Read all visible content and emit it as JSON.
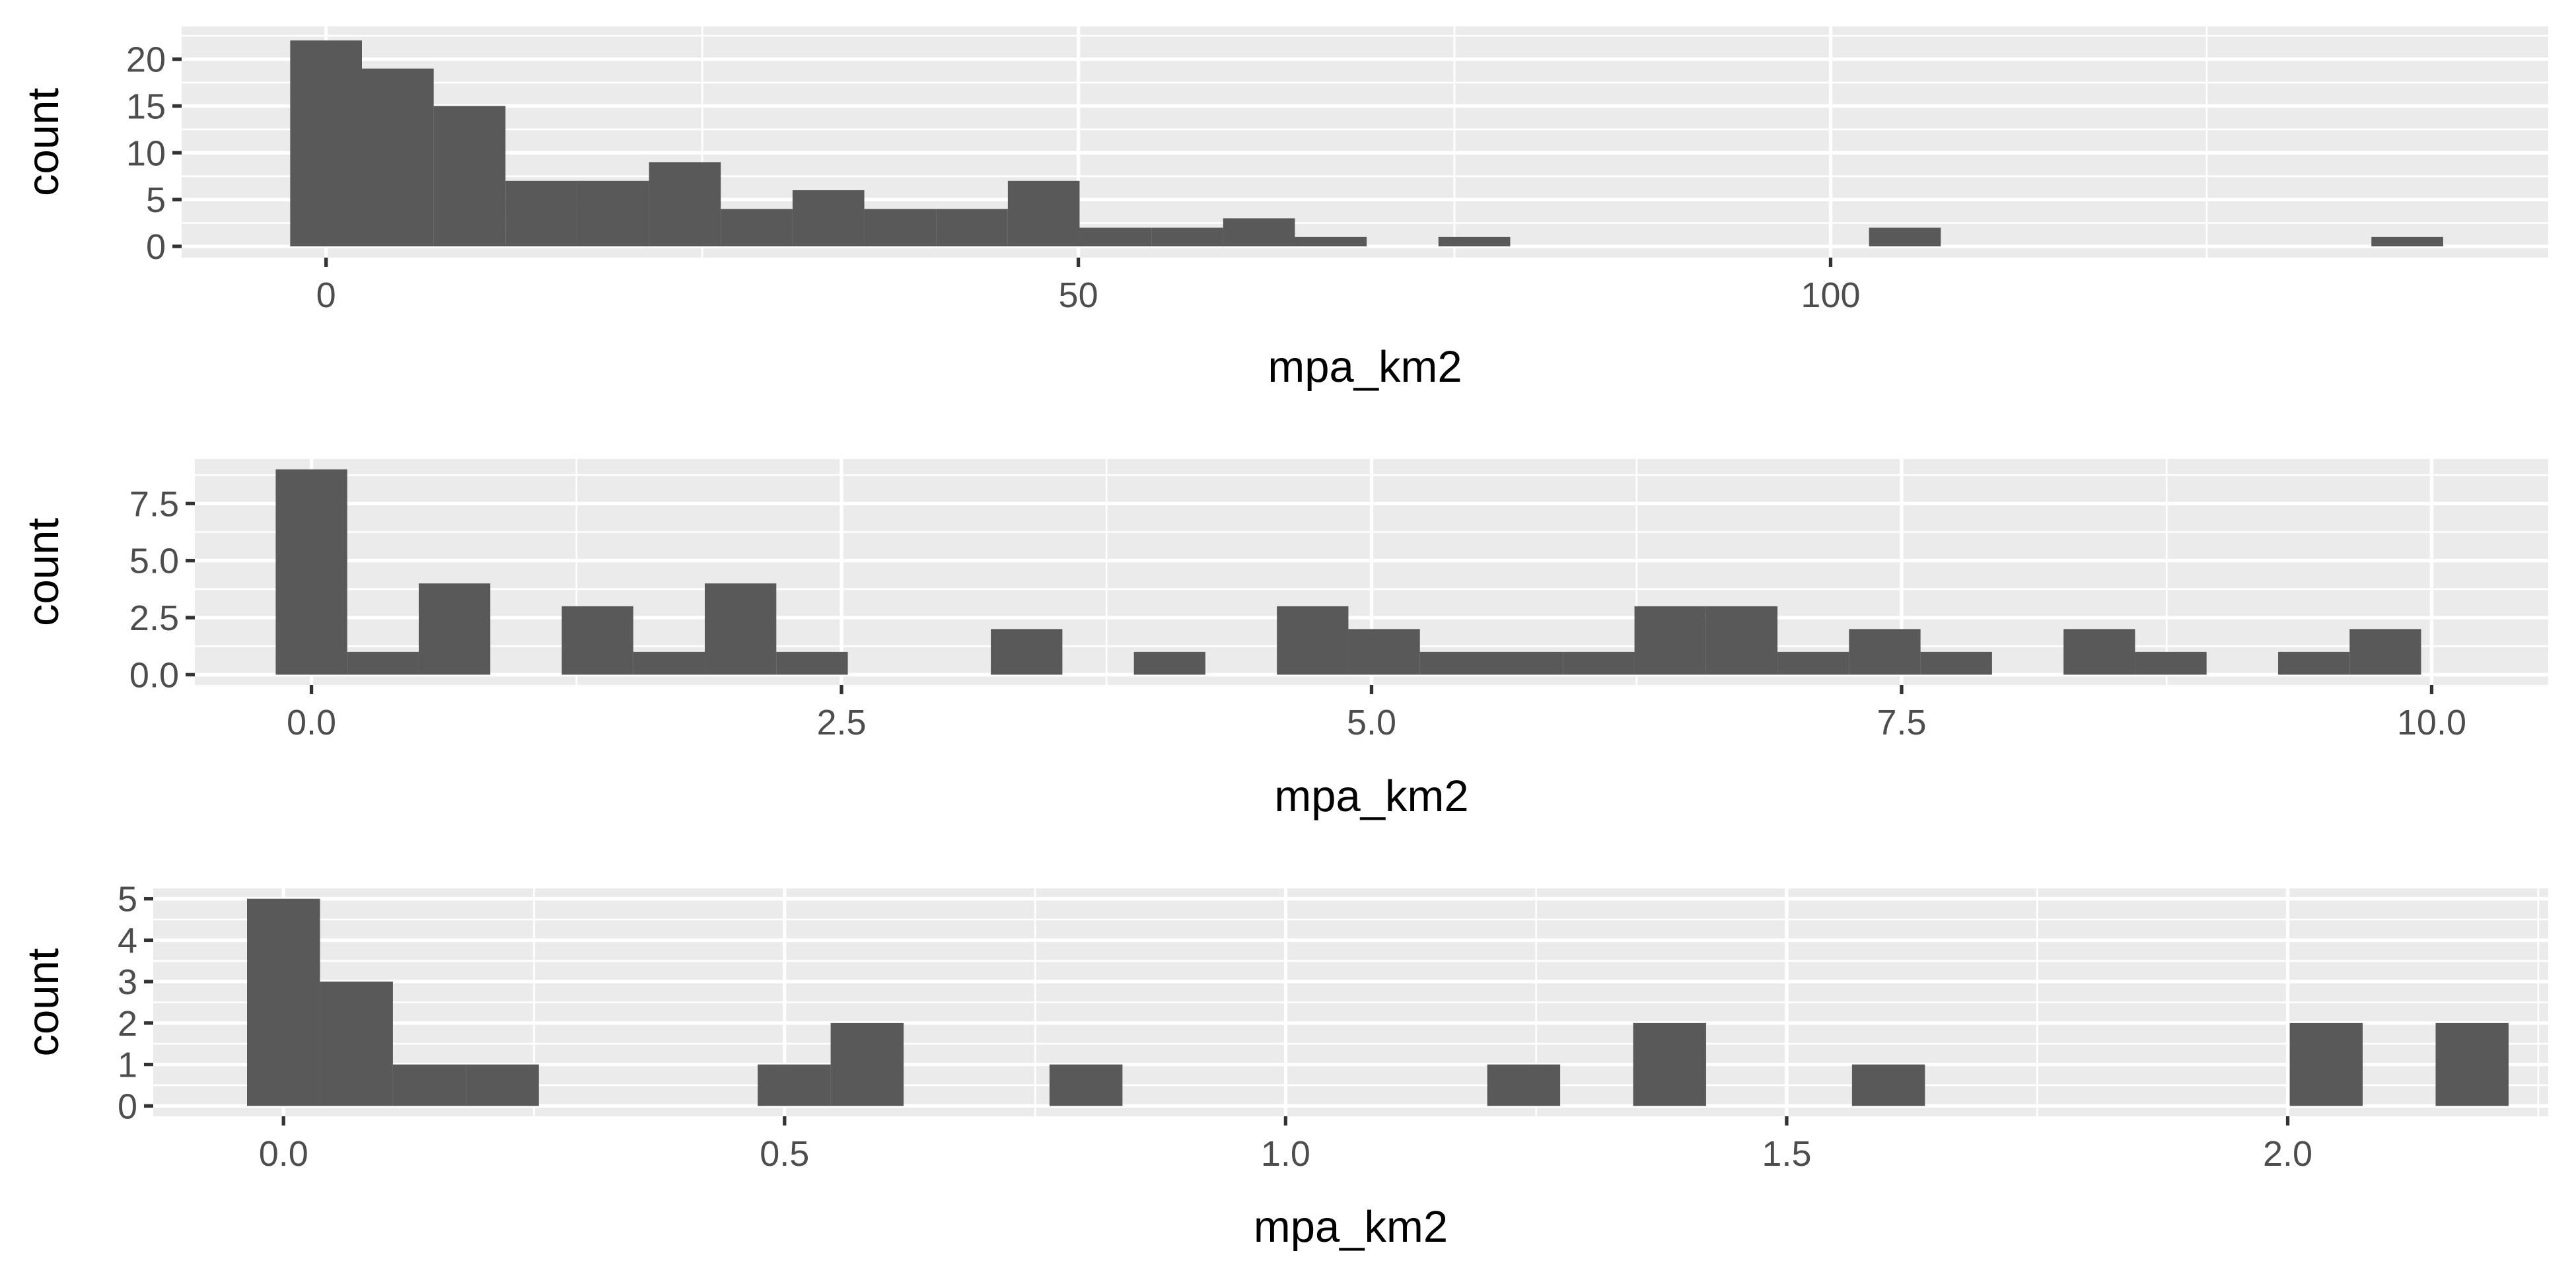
{
  "colors": {
    "panel_background": "#EBEBEB",
    "grid": "#FFFFFF",
    "bar_fill": "#595959",
    "tick_text": "#4D4D4D",
    "title_text": "#000000"
  },
  "chart_data": [
    {
      "type": "bar",
      "kind": "histogram",
      "xlabel": "mpa_km2",
      "ylabel": "count",
      "xlim": [
        -9.6,
        147.7
      ],
      "ylim": [
        -1.2,
        23.5
      ],
      "x_ticks": [
        0,
        50,
        100
      ],
      "x_tick_labels": [
        "0",
        "50",
        "100"
      ],
      "x_minor_ticks": [
        25,
        75,
        125
      ],
      "y_ticks": [
        0,
        5,
        10,
        15,
        20
      ],
      "y_tick_labels": [
        "0",
        "5",
        "10",
        "15",
        "20"
      ],
      "y_minor_ticks": [
        2.5,
        7.5,
        12.5,
        17.5,
        22.5
      ],
      "bin_width": 4.77,
      "bins": [
        {
          "x": 0,
          "count": 22
        },
        {
          "x": 4.77,
          "count": 19
        },
        {
          "x": 9.54,
          "count": 15
        },
        {
          "x": 14.31,
          "count": 7
        },
        {
          "x": 19.08,
          "count": 7
        },
        {
          "x": 23.85,
          "count": 9
        },
        {
          "x": 28.62,
          "count": 4
        },
        {
          "x": 33.39,
          "count": 6
        },
        {
          "x": 38.16,
          "count": 4
        },
        {
          "x": 42.93,
          "count": 4
        },
        {
          "x": 47.7,
          "count": 7
        },
        {
          "x": 52.47,
          "count": 2
        },
        {
          "x": 57.24,
          "count": 2
        },
        {
          "x": 62.01,
          "count": 3
        },
        {
          "x": 66.78,
          "count": 1
        },
        {
          "x": 76.32,
          "count": 1
        },
        {
          "x": 104.94,
          "count": 2
        },
        {
          "x": 138.33,
          "count": 1
        }
      ]
    },
    {
      "type": "bar",
      "kind": "histogram",
      "xlabel": "mpa_km2",
      "ylabel": "count",
      "xlim": [
        -0.55,
        10.55
      ],
      "ylim": [
        -0.45,
        9.45
      ],
      "x_ticks": [
        0,
        2.5,
        5,
        7.5,
        10
      ],
      "x_tick_labels": [
        "0.0",
        "2.5",
        "5.0",
        "7.5",
        "10.0"
      ],
      "x_minor_ticks": [
        1.25,
        3.75,
        6.25,
        8.75
      ],
      "y_ticks": [
        0,
        2.5,
        5,
        7.5
      ],
      "y_tick_labels": [
        "0.0",
        "2.5",
        "5.0",
        "7.5"
      ],
      "y_minor_ticks": [
        1.25,
        3.75,
        6.25,
        8.75
      ],
      "bin_width": 0.3373,
      "bins": [
        {
          "x": 0,
          "count": 9
        },
        {
          "x": 0.3373,
          "count": 1
        },
        {
          "x": 0.6746,
          "count": 4
        },
        {
          "x": 1.3492,
          "count": 3
        },
        {
          "x": 1.6865,
          "count": 1
        },
        {
          "x": 2.0238,
          "count": 4
        },
        {
          "x": 2.3611,
          "count": 1
        },
        {
          "x": 3.373,
          "count": 2
        },
        {
          "x": 4.0476,
          "count": 1
        },
        {
          "x": 4.7222,
          "count": 3
        },
        {
          "x": 5.0595,
          "count": 2
        },
        {
          "x": 5.3968,
          "count": 1
        },
        {
          "x": 5.7341,
          "count": 1
        },
        {
          "x": 6.0714,
          "count": 1
        },
        {
          "x": 6.4087,
          "count": 3
        },
        {
          "x": 6.746,
          "count": 3
        },
        {
          "x": 7.0833,
          "count": 1
        },
        {
          "x": 7.4206,
          "count": 2
        },
        {
          "x": 7.7579,
          "count": 1
        },
        {
          "x": 8.4325,
          "count": 2
        },
        {
          "x": 8.7698,
          "count": 1
        },
        {
          "x": 9.4444,
          "count": 1
        },
        {
          "x": 9.7817,
          "count": 2
        }
      ]
    },
    {
      "type": "bar",
      "kind": "histogram",
      "xlabel": "mpa_km2",
      "ylabel": "count",
      "xlim": [
        -0.13,
        2.26
      ],
      "ylim": [
        -0.25,
        5.25
      ],
      "x_ticks": [
        0,
        0.5,
        1,
        1.5,
        2
      ],
      "x_tick_labels": [
        "0.0",
        "0.5",
        "1.0",
        "1.5",
        "2.0"
      ],
      "x_minor_ticks": [
        0.25,
        0.75,
        1.25,
        1.75,
        2.25
      ],
      "y_ticks": [
        0,
        1,
        2,
        3,
        4,
        5
      ],
      "y_tick_labels": [
        "0",
        "1",
        "2",
        "3",
        "4",
        "5"
      ],
      "y_minor_ticks": [
        0.5,
        1.5,
        2.5,
        3.5,
        4.5
      ],
      "bin_width": 0.0728,
      "bins": [
        {
          "x": 0,
          "count": 5
        },
        {
          "x": 0.0728,
          "count": 3
        },
        {
          "x": 0.1456,
          "count": 1
        },
        {
          "x": 0.2184,
          "count": 1
        },
        {
          "x": 0.5096,
          "count": 1
        },
        {
          "x": 0.5824,
          "count": 2
        },
        {
          "x": 0.8008,
          "count": 1
        },
        {
          "x": 1.2376,
          "count": 1
        },
        {
          "x": 1.3832,
          "count": 2
        },
        {
          "x": 1.6016,
          "count": 1
        },
        {
          "x": 2.0384,
          "count": 2
        },
        {
          "x": 2.184,
          "count": 2
        }
      ]
    }
  ]
}
